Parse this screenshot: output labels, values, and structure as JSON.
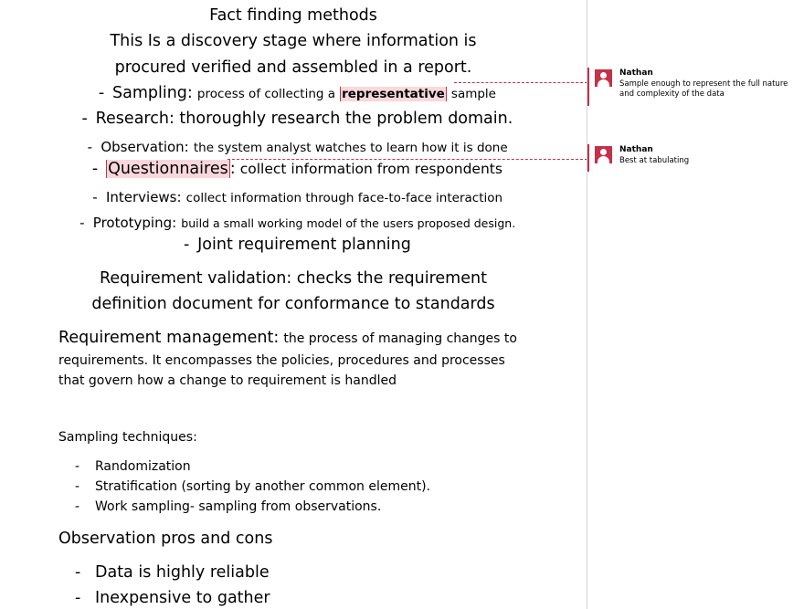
{
  "document": {
    "heading": "Fact finding methods",
    "intro_line1": "This Is a discovery stage where information is",
    "intro_line2": "procured verified and assembled in a report.",
    "methods": [
      {
        "term": "Sampling:",
        "pre": "process of collecting a",
        "highlight": "representative",
        "post": "sample"
      },
      {
        "term": "Research:",
        "desc": "thoroughly research the problem domain."
      },
      {
        "term": "Observation:",
        "desc": "the system analyst watches to learn how it is done"
      },
      {
        "term": "Questionnaires",
        "colon": ":",
        "desc": "collect information from respondents"
      },
      {
        "term": "Interviews:",
        "desc": "collect information through face-to-face interaction"
      },
      {
        "term": "Prototyping:",
        "desc": "build a small working model of the users proposed design."
      },
      {
        "term": "Joint requirement planning"
      }
    ],
    "validation_line1": "Requirement validation: checks the requirement",
    "validation_line2": "definition document for conformance to standards",
    "management_term": "Requirement management:",
    "management_line1": "the process of managing changes to",
    "management_line2": "requirements. It encompasses the policies, procedures and processes",
    "management_line3": "that govern how a change to requirement is handled",
    "sampling_heading": "Sampling techniques:",
    "sampling_items": [
      "Randomization",
      "Stratification (sorting by another common element).",
      "Work sampling- sampling from observations."
    ],
    "observation_heading": "Observation pros and cons",
    "observation_items": [
      "Data is highly reliable",
      "Inexpensive to gather"
    ],
    "bullet": "-"
  },
  "comments": [
    {
      "author": "Nathan",
      "text": "Sample enough to represent the full nature and complexity of the data"
    },
    {
      "author": "Nathan",
      "text": "Best at tabulating"
    }
  ],
  "colors": {
    "comment_accent": "#c4314b",
    "highlight": "#f8d8dc",
    "margin_border": "#d4d4d4"
  }
}
